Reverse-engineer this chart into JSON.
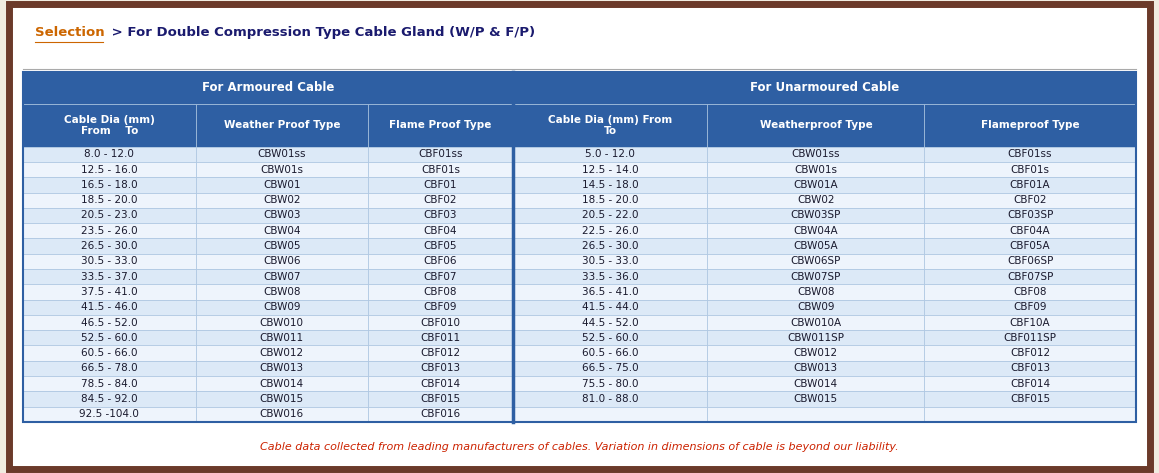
{
  "title_selection": "Selection",
  "title_rest": " > For Double Compression Type Cable Gland (W/P & F/P)",
  "footer": "Cable data collected from leading manufacturers of cables. Variation in dimensions of cable is beyond our liability.",
  "armoured_header": "For Armoured Cable",
  "unarmoured_header": "For Unarmoured Cable",
  "col_headers": [
    "Cable Dia (mm)\nFrom    To",
    "Weather Proof Type",
    "Flame Proof Type",
    "Cable Dia (mm) From\nTo",
    "Weatherproof Type",
    "Flameproof Type"
  ],
  "armoured_data": [
    [
      "8.0 - 12.0",
      "CBW01ss",
      "CBF01ss"
    ],
    [
      "12.5 - 16.0",
      "CBW01s",
      "CBF01s"
    ],
    [
      "16.5 - 18.0",
      "CBW01",
      "CBF01"
    ],
    [
      "18.5 - 20.0",
      "CBW02",
      "CBF02"
    ],
    [
      "20.5 - 23.0",
      "CBW03",
      "CBF03"
    ],
    [
      "23.5 - 26.0",
      "CBW04",
      "CBF04"
    ],
    [
      "26.5 - 30.0",
      "CBW05",
      "CBF05"
    ],
    [
      "30.5 - 33.0",
      "CBW06",
      "CBF06"
    ],
    [
      "33.5 - 37.0",
      "CBW07",
      "CBF07"
    ],
    [
      "37.5 - 41.0",
      "CBW08",
      "CBF08"
    ],
    [
      "41.5 - 46.0",
      "CBW09",
      "CBF09"
    ],
    [
      "46.5 - 52.0",
      "CBW010",
      "CBF010"
    ],
    [
      "52.5 - 60.0",
      "CBW011",
      "CBF011"
    ],
    [
      "60.5 - 66.0",
      "CBW012",
      "CBF012"
    ],
    [
      "66.5 - 78.0",
      "CBW013",
      "CBF013"
    ],
    [
      "78.5 - 84.0",
      "CBW014",
      "CBF014"
    ],
    [
      "84.5 - 92.0",
      "CBW015",
      "CBF015"
    ],
    [
      "92.5 -104.0",
      "CBW016",
      "CBF016"
    ]
  ],
  "unarmoured_data": [
    [
      "5.0 - 12.0",
      "CBW01ss",
      "CBF01ss"
    ],
    [
      "12.5 - 14.0",
      "CBW01s",
      "CBF01s"
    ],
    [
      "14.5 - 18.0",
      "CBW01A",
      "CBF01A"
    ],
    [
      "18.5 - 20.0",
      "CBW02",
      "CBF02"
    ],
    [
      "20.5 - 22.0",
      "CBW03SP",
      "CBF03SP"
    ],
    [
      "22.5 - 26.0",
      "CBW04A",
      "CBF04A"
    ],
    [
      "26.5 - 30.0",
      "CBW05A",
      "CBF05A"
    ],
    [
      "30.5 - 33.0",
      "CBW06SP",
      "CBF06SP"
    ],
    [
      "33.5 - 36.0",
      "CBW07SP",
      "CBF07SP"
    ],
    [
      "36.5 - 41.0",
      "CBW08",
      "CBF08"
    ],
    [
      "41.5 - 44.0",
      "CBW09",
      "CBF09"
    ],
    [
      "44.5 - 52.0",
      "CBW010A",
      "CBF10A"
    ],
    [
      "52.5 - 60.0",
      "CBW011SP",
      "CBF011SP"
    ],
    [
      "60.5 - 66.0",
      "CBW012",
      "CBF012"
    ],
    [
      "66.5 - 75.0",
      "CBW013",
      "CBF013"
    ],
    [
      "75.5 - 80.0",
      "CBW014",
      "CBF014"
    ],
    [
      "81.0 - 88.0",
      "CBW015",
      "CBF015"
    ],
    [
      "",
      "",
      ""
    ]
  ],
  "outer_border_color": "#6b3a2a",
  "header_bg": "#2e5fa3",
  "header_fg": "#ffffff",
  "row_even_bg": "#dce9f7",
  "row_odd_bg": "#eef4fc",
  "row_fg": "#1a1a2e",
  "cell_border_color": "#aac4e0",
  "title_selection_color": "#cc6600",
  "title_rest_color": "#1a1a6e",
  "footer_color": "#cc2200",
  "bg_color": "#ffffff",
  "outer_bg": "#f0ece0"
}
